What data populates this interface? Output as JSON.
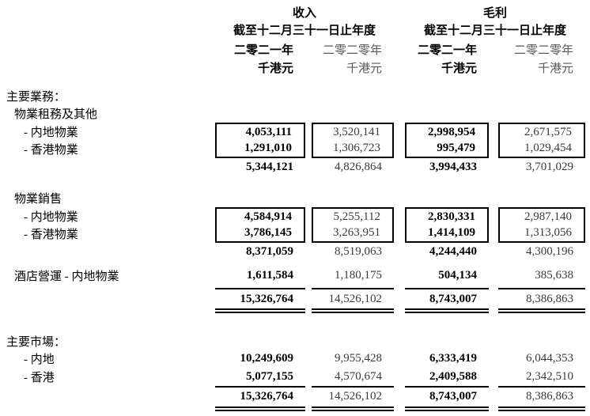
{
  "colors": {
    "text_primary": "#000000",
    "text_prior_numbers": "#3a3a3a",
    "text_prior_header": "#595959",
    "rule_color": "#000000",
    "background": "#ffffff"
  },
  "header": {
    "revenue": {
      "title": "收入",
      "period": "截至十二月三十一日止年度",
      "year_current": "二零二一年",
      "year_prior": "二零二零年",
      "unit_current": "千港元",
      "unit_prior": "千港元"
    },
    "gross_profit": {
      "title": "毛利",
      "period": "截至十二月三十一日止年度",
      "year_current": "二零二一年",
      "year_prior": "二零二零年",
      "unit_current": "千港元",
      "unit_prior": "千港元"
    }
  },
  "table": {
    "business_heading": "主要業務：",
    "sections": [
      {
        "name": "物業租務及其他",
        "rows": [
          {
            "label": "- 内地物業",
            "values": [
              "4,053,111",
              "3,520,141",
              "2,998,954",
              "2,671,575"
            ]
          },
          {
            "label": "- 香港物業",
            "values": [
              "1,291,010",
              "1,306,723",
              "995,479",
              "1,029,454"
            ]
          }
        ],
        "subtotal": [
          "5,344,121",
          "4,826,864",
          "3,994,433",
          "3,701,029"
        ]
      },
      {
        "name": "物業銷售",
        "rows": [
          {
            "label": "- 内地物業",
            "values": [
              "4,584,914",
              "5,255,112",
              "2,830,331",
              "2,987,140"
            ]
          },
          {
            "label": "- 香港物業",
            "values": [
              "3,786,145",
              "3,263,951",
              "1,414,109",
              "1,313,056"
            ]
          }
        ],
        "subtotal": [
          "8,371,059",
          "8,519,063",
          "4,244,440",
          "4,300,196"
        ]
      }
    ],
    "hotel": {
      "label": "酒店營運 - 内地物業",
      "values": [
        "1,611,584",
        "1,180,175",
        "504,134",
        "385,638"
      ]
    },
    "business_total": [
      "15,326,764",
      "14,526,102",
      "8,743,007",
      "8,386,863"
    ],
    "market_heading": "主要市場：",
    "market_rows": [
      {
        "label": "- 内地",
        "values": [
          "10,249,609",
          "9,955,428",
          "6,333,419",
          "6,044,353"
        ]
      },
      {
        "label": "- 香港",
        "values": [
          "5,077,155",
          "4,570,674",
          "2,409,588",
          "2,342,510"
        ]
      }
    ],
    "market_total": [
      "15,326,764",
      "14,526,102",
      "8,743,007",
      "8,386,863"
    ]
  }
}
